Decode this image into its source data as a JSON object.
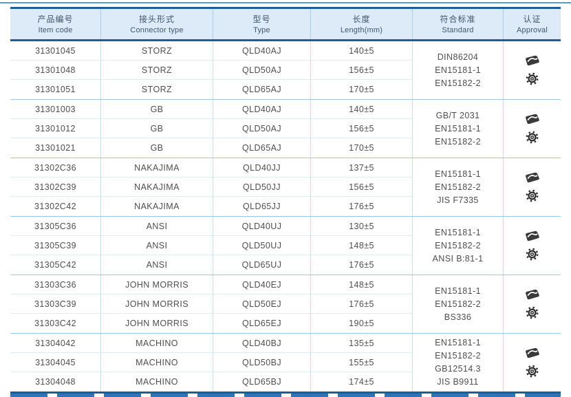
{
  "header": {
    "columns": [
      {
        "zh": "产品编号",
        "en": "Item code"
      },
      {
        "zh": "接头形式",
        "en": "Connector type"
      },
      {
        "zh": "型号",
        "en": "Type"
      },
      {
        "zh": "长度",
        "en": "Length(mm)"
      },
      {
        "zh": "符合标准",
        "en": "Standard"
      },
      {
        "zh": "认证",
        "en": "Approval"
      }
    ]
  },
  "approval": {
    "icons": [
      "certificate-logo-icon",
      "wheelmark-gear-icon"
    ]
  },
  "groups": [
    {
      "connector": "STORZ",
      "rows": [
        {
          "item_code": "31301045",
          "connector": "STORZ",
          "type": "QLD40AJ",
          "length": "140±5"
        },
        {
          "item_code": "31301048",
          "connector": "STORZ",
          "type": "QLD50AJ",
          "length": "156±5"
        },
        {
          "item_code": "31301051",
          "connector": "STORZ",
          "type": "QLD65AJ",
          "length": "170±5"
        }
      ],
      "standards": [
        "DIN86204",
        "EN15181-1",
        "EN15182-2"
      ]
    },
    {
      "connector": "GB",
      "rows": [
        {
          "item_code": "31301003",
          "connector": "GB",
          "type": "QLD40AJ",
          "length": "140±5"
        },
        {
          "item_code": "31301012",
          "connector": "GB",
          "type": "QLD50AJ",
          "length": "156±5"
        },
        {
          "item_code": "31301021",
          "connector": "GB",
          "type": "QLD65AJ",
          "length": "170±5"
        }
      ],
      "standards": [
        "GB/T 2031",
        "EN15181-1",
        "EN15182-2"
      ]
    },
    {
      "connector": "NAKAJIMA",
      "rows": [
        {
          "item_code": "31302C36",
          "connector": "NAKAJIMA",
          "type": "QLD40JJ",
          "length": "137±5"
        },
        {
          "item_code": "31302C39",
          "connector": "NAKAJIMA",
          "type": "QLD50JJ",
          "length": "156±5"
        },
        {
          "item_code": "31302C42",
          "connector": "NAKAJIMA",
          "type": "QLD65JJ",
          "length": "176±5"
        }
      ],
      "standards": [
        "EN15181-1",
        "EN15182-2",
        "JIS F7335"
      ]
    },
    {
      "connector": "ANSI",
      "rows": [
        {
          "item_code": "31305C36",
          "connector": "ANSI",
          "type": "QLD40UJ",
          "length": "130±5"
        },
        {
          "item_code": "31305C39",
          "connector": "ANSI",
          "type": "QLD50UJ",
          "length": "148±5"
        },
        {
          "item_code": "31305C42",
          "connector": "ANSI",
          "type": "QLD65UJ",
          "length": "176±5"
        }
      ],
      "standards": [
        "EN15181-1",
        "EN15182-2",
        "ANSI B:81-1"
      ]
    },
    {
      "connector": "JOHN MORRIS",
      "rows": [
        {
          "item_code": "31303C36",
          "connector": "JOHN MORRIS",
          "type": "QLD40EJ",
          "length": "148±5"
        },
        {
          "item_code": "31303C39",
          "connector": "JOHN MORRIS",
          "type": "QLD50EJ",
          "length": "176±5"
        },
        {
          "item_code": "31303C42",
          "connector": "JOHN MORRIS",
          "type": "QLD65EJ",
          "length": "190±5"
        }
      ],
      "standards": [
        "EN15181-1",
        "EN15182-2",
        "BS336"
      ]
    },
    {
      "connector": "MACHINO",
      "rows": [
        {
          "item_code": "31304042",
          "connector": "MACHINO",
          "type": "QLD40BJ",
          "length": "135±5"
        },
        {
          "item_code": "31304045",
          "connector": "MACHINO",
          "type": "QLD50BJ",
          "length": "155±5"
        },
        {
          "item_code": "31304048",
          "connector": "MACHINO",
          "type": "QLD65BJ",
          "length": "174±5"
        }
      ],
      "standards": [
        "EN15181-1",
        "EN15182-2",
        "GB12514.3",
        "JIS B9911"
      ]
    }
  ],
  "colors": {
    "accent_border": "#1f5c99",
    "header_bg": "#dcebf7",
    "group_separator": "#9dc9e4",
    "row_separator": "#d9ecf8",
    "column_separator": "#c2e0f1",
    "text": "#4e4e4e",
    "header_text": "#44546b",
    "top_rule": "#5b9bd5",
    "bottom_dashes": "#2e74b5"
  }
}
